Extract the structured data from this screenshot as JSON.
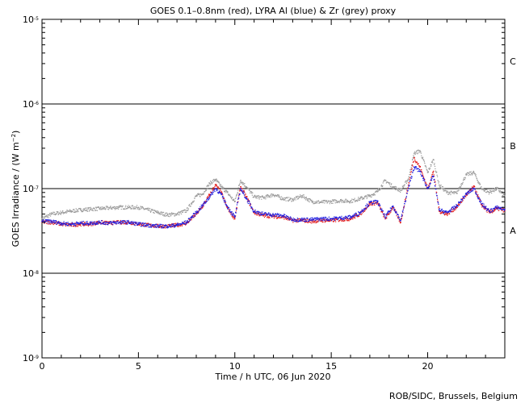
{
  "chart_data": {
    "type": "scatter",
    "title": "GOES 0.1–0.8nm (red), LYRA Al (blue) & Zr (grey) proxy",
    "xlabel": "Time / h UTC, 06 Jun 2020",
    "ylabel": "GOES Irradiance / (W m⁻²)",
    "ylabel_base": "GOES Irradiance / (W m",
    "ylabel_exp": "−2",
    "ylabel_tail": ")",
    "credit": "ROB/SIDC, Brussels, Belgium",
    "xlim": [
      0,
      24
    ],
    "ylim": [
      1e-09,
      1e-05
    ],
    "yscale": "log",
    "x_ticks": [
      0,
      5,
      10,
      15,
      20
    ],
    "x_tick_labels": [
      "0",
      "5",
      "10",
      "15",
      "20"
    ],
    "y_ticks": [
      1e-09,
      1e-08,
      1e-07,
      1e-06,
      1e-05
    ],
    "y_tick_labels": [
      {
        "base": "10",
        "exp": "-9"
      },
      {
        "base": "10",
        "exp": "-8"
      },
      {
        "base": "10",
        "exp": "-7"
      },
      {
        "base": "10",
        "exp": "-6"
      },
      {
        "base": "10",
        "exp": "-5"
      }
    ],
    "reference_lines": [
      1e-08,
      1e-07,
      1e-06
    ],
    "class_labels": [
      {
        "label": "C",
        "y": 3.2e-06
      },
      {
        "label": "B",
        "y": 3.2e-07
      },
      {
        "label": "A",
        "y": 3.2e-08
      }
    ],
    "grid": false,
    "series": [
      {
        "name": "LYRA Zr proxy",
        "color": "#9a9a9a",
        "x": [
          0,
          0.5,
          1,
          1.5,
          2,
          2.5,
          3,
          3.5,
          4,
          4.5,
          5,
          5.5,
          6,
          6.5,
          7,
          7.5,
          8,
          8.3,
          8.7,
          9,
          9.3,
          9.6,
          10,
          10.3,
          10.6,
          11,
          11.5,
          12,
          12.5,
          13,
          13.5,
          14,
          14.5,
          15,
          15.5,
          16,
          16.5,
          17,
          17.4,
          17.8,
          18.2,
          18.6,
          19,
          19.3,
          19.6,
          20,
          20.3,
          20.6,
          21,
          21.5,
          22,
          22.4,
          22.8,
          23.2,
          23.6,
          24
        ],
        "values": [
          4.4e-08,
          5e-08,
          5.2e-08,
          5.4e-08,
          5.6e-08,
          5.7e-08,
          5.8e-08,
          5.9e-08,
          6e-08,
          6e-08,
          6e-08,
          5.6e-08,
          5.2e-08,
          4.9e-08,
          5e-08,
          5.5e-08,
          8.2e-08,
          8.5e-08,
          1.15e-07,
          1.28e-07,
          1.05e-07,
          9e-08,
          7e-08,
          1.25e-07,
          1.05e-07,
          8e-08,
          7.8e-08,
          8.5e-08,
          7.6e-08,
          7.4e-08,
          8.2e-08,
          7e-08,
          6.9e-08,
          7e-08,
          7.2e-08,
          7.1e-08,
          7.6e-08,
          8.2e-08,
          9.2e-08,
          1.25e-07,
          1.05e-07,
          9.5e-08,
          1.3e-07,
          2.6e-07,
          2.8e-07,
          1.55e-07,
          2.2e-07,
          1.1e-07,
          9e-08,
          8.8e-08,
          1.45e-07,
          1.55e-07,
          1e-07,
          9e-08,
          1e-07,
          8.2e-08
        ]
      },
      {
        "name": "GOES 0.1–0.8nm",
        "color": "#e21b1b",
        "x": [
          0,
          0.5,
          1,
          1.5,
          2,
          2.5,
          3,
          3.5,
          4,
          4.5,
          5,
          5.5,
          6,
          6.5,
          7,
          7.5,
          8,
          8.3,
          8.7,
          9,
          9.3,
          9.6,
          10,
          10.3,
          10.6,
          11,
          11.5,
          12,
          12.5,
          13,
          13.5,
          14,
          14.5,
          15,
          15.5,
          16,
          16.5,
          17,
          17.4,
          17.8,
          18.2,
          18.6,
          19,
          19.3,
          19.6,
          20,
          20.3,
          20.6,
          21,
          21.5,
          22,
          22.4,
          22.8,
          23.2,
          23.6,
          24
        ],
        "values": [
          4e-08,
          4e-08,
          3.8e-08,
          3.7e-08,
          3.8e-08,
          3.8e-08,
          4e-08,
          3.9e-08,
          4e-08,
          4e-08,
          3.8e-08,
          3.7e-08,
          3.6e-08,
          3.6e-08,
          3.7e-08,
          3.9e-08,
          5e-08,
          6e-08,
          8.5e-08,
          1.1e-07,
          9e-08,
          6e-08,
          4.4e-08,
          1.05e-07,
          8e-08,
          5.2e-08,
          4.8e-08,
          4.7e-08,
          4.6e-08,
          4.2e-08,
          4.2e-08,
          4.1e-08,
          4.2e-08,
          4.2e-08,
          4.3e-08,
          4.4e-08,
          5e-08,
          6.6e-08,
          6.8e-08,
          4.4e-08,
          6e-08,
          4e-08,
          1.1e-07,
          2.3e-07,
          1.8e-07,
          1e-07,
          1.6e-07,
          5.4e-08,
          5e-08,
          6e-08,
          8.4e-08,
          1.05e-07,
          6.4e-08,
          5.2e-08,
          5.8e-08,
          5.5e-08
        ]
      },
      {
        "name": "LYRA Al proxy",
        "color": "#1a1ae0",
        "x": [
          0,
          0.5,
          1,
          1.5,
          2,
          2.5,
          3,
          3.5,
          4,
          4.5,
          5,
          5.5,
          6,
          6.5,
          7,
          7.5,
          8,
          8.3,
          8.7,
          9,
          9.3,
          9.6,
          10,
          10.3,
          10.6,
          11,
          11.5,
          12,
          12.5,
          13,
          13.5,
          14,
          14.5,
          15,
          15.5,
          16,
          16.5,
          17,
          17.4,
          17.8,
          18.2,
          18.6,
          19,
          19.3,
          19.6,
          20,
          20.3,
          20.6,
          21,
          21.5,
          22,
          22.4,
          22.8,
          23.2,
          23.6,
          24
        ],
        "values": [
          4.1e-08,
          4.1e-08,
          3.9e-08,
          3.8e-08,
          3.9e-08,
          3.9e-08,
          4e-08,
          3.9e-08,
          4e-08,
          4e-08,
          3.8e-08,
          3.7e-08,
          3.6e-08,
          3.6e-08,
          3.7e-08,
          4e-08,
          5.2e-08,
          6.2e-08,
          8e-08,
          1e-07,
          8.5e-08,
          6.2e-08,
          4.6e-08,
          1e-07,
          7.6e-08,
          5.4e-08,
          5e-08,
          4.9e-08,
          4.8e-08,
          4.3e-08,
          4.3e-08,
          4.3e-08,
          4.4e-08,
          4.4e-08,
          4.5e-08,
          4.6e-08,
          5.2e-08,
          6.8e-08,
          7e-08,
          4.6e-08,
          6.2e-08,
          4.2e-08,
          1e-07,
          1.8e-07,
          1.6e-07,
          1e-07,
          1.4e-07,
          5.6e-08,
          5.2e-08,
          6.2e-08,
          8.6e-08,
          1e-07,
          6.6e-08,
          5.4e-08,
          6e-08,
          5.7e-08
        ]
      }
    ]
  }
}
